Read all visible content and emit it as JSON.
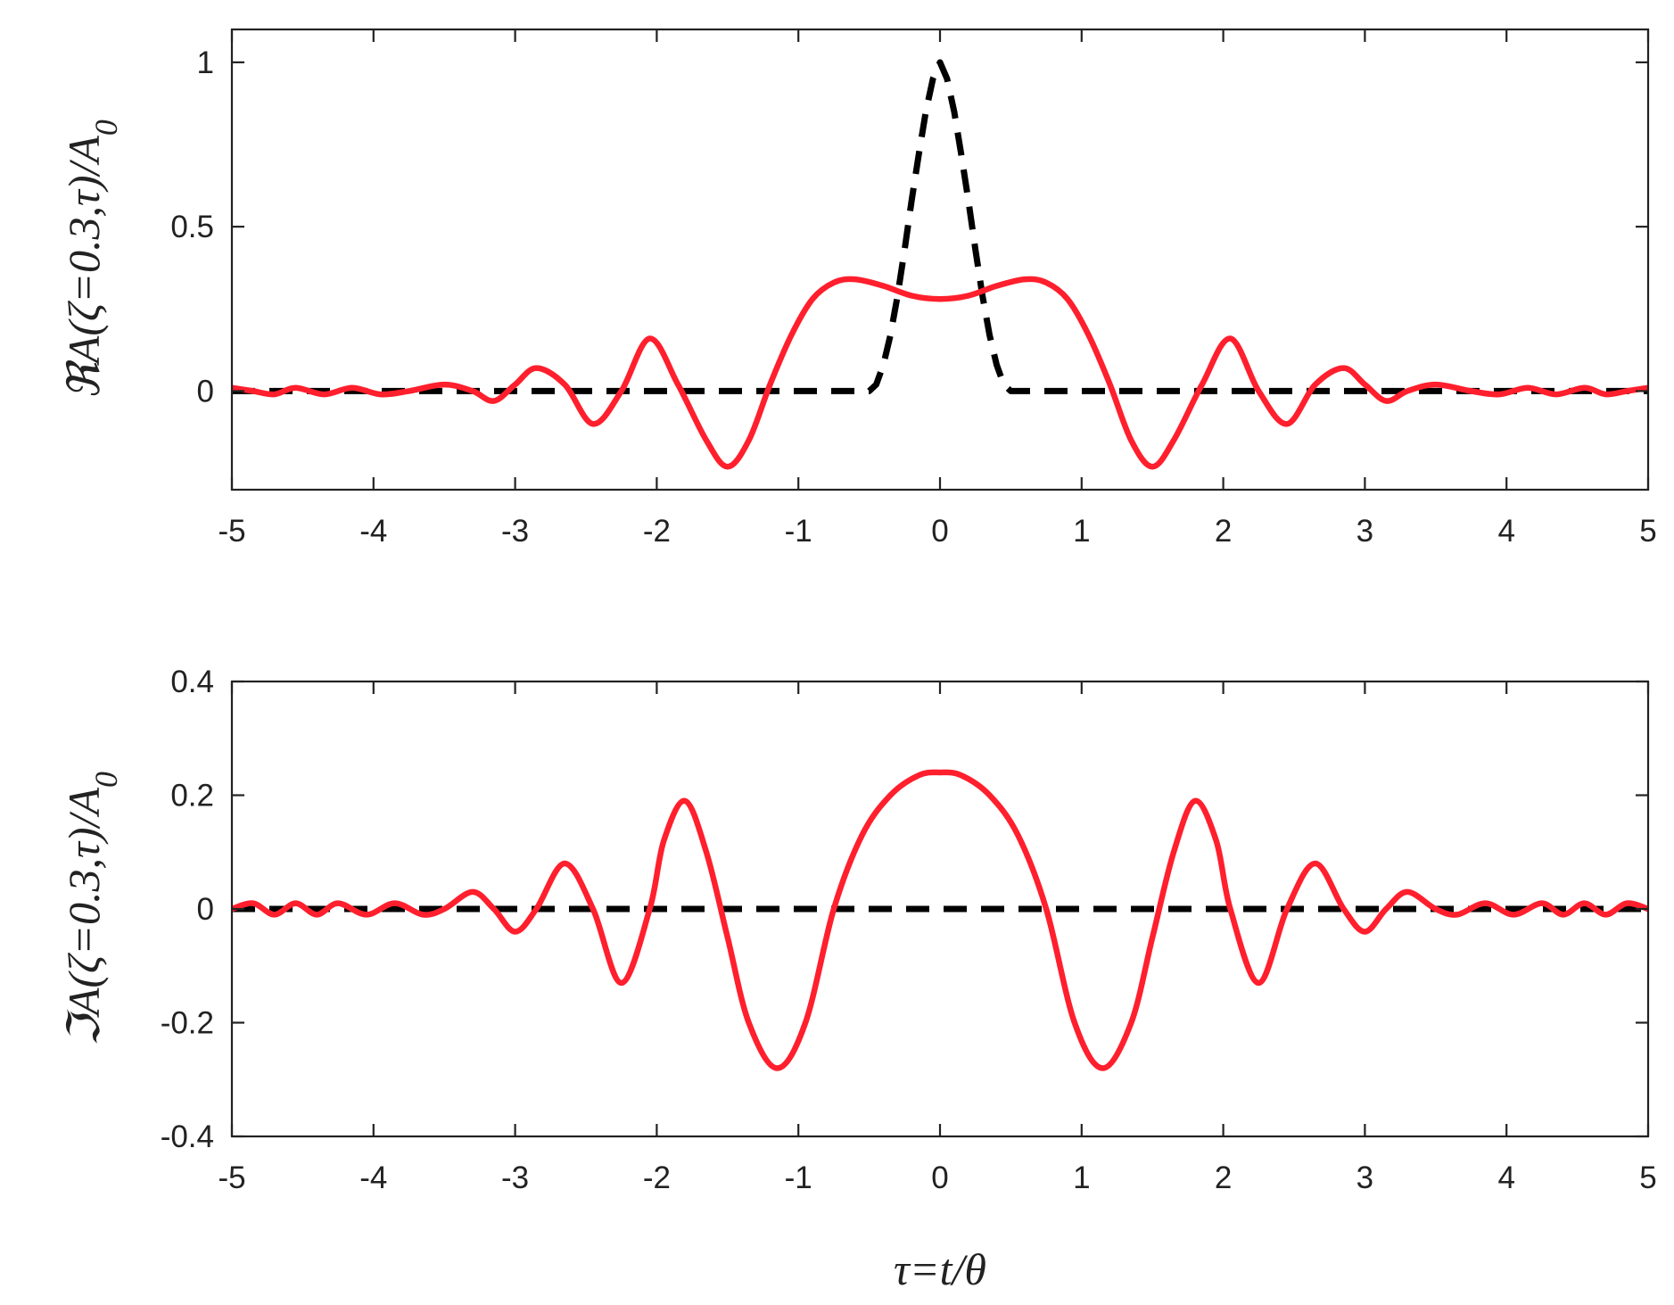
{
  "chart_data": [
    {
      "type": "line",
      "title": "",
      "xlabel": "",
      "ylabel": "ℜA(ζ=0.3,τ)/A0",
      "xlim": [
        -5,
        5
      ],
      "ylim": [
        -0.3,
        1.1
      ],
      "xticks": [
        "-5",
        "-4",
        "-3",
        "-2",
        "-1",
        "0",
        "1",
        "2",
        "3",
        "4",
        "5"
      ],
      "yticks": [
        "0",
        "0.5",
        "1"
      ],
      "grid": false,
      "legend": "none",
      "series": [
        {
          "style": "dashed",
          "color": "#000000",
          "x": [
            -5,
            -0.5,
            -0.45,
            -0.4,
            -0.35,
            -0.3,
            -0.25,
            -0.2,
            -0.15,
            -0.1,
            -0.05,
            0,
            0.05,
            0.1,
            0.15,
            0.2,
            0.25,
            0.3,
            0.35,
            0.4,
            0.45,
            0.5,
            5
          ],
          "y": [
            0,
            0,
            0.02,
            0.08,
            0.17,
            0.29,
            0.43,
            0.58,
            0.72,
            0.85,
            0.95,
            1.0,
            0.95,
            0.85,
            0.72,
            0.58,
            0.43,
            0.29,
            0.17,
            0.08,
            0.02,
            0,
            0
          ]
        },
        {
          "style": "solid",
          "color": "#ff1f2d",
          "x": [
            -5,
            -4.85,
            -4.7,
            -4.55,
            -4.35,
            -4.15,
            -3.95,
            -3.75,
            -3.5,
            -3.3,
            -3.15,
            -3.0,
            -2.85,
            -2.65,
            -2.45,
            -2.25,
            -2.05,
            -1.85,
            -1.65,
            -1.5,
            -1.35,
            -1.2,
            -1.05,
            -0.9,
            -0.75,
            -0.6,
            -0.4,
            -0.2,
            0,
            0.2,
            0.4,
            0.6,
            0.75,
            0.9,
            1.05,
            1.2,
            1.35,
            1.5,
            1.65,
            1.85,
            2.05,
            2.25,
            2.45,
            2.65,
            2.85,
            3.0,
            3.15,
            3.3,
            3.5,
            3.75,
            3.95,
            4.15,
            4.35,
            4.55,
            4.7,
            4.85,
            5
          ],
          "y": [
            0.01,
            0.0,
            -0.01,
            0.01,
            -0.01,
            0.01,
            -0.01,
            0.0,
            0.02,
            0.0,
            -0.03,
            0.02,
            0.07,
            0.02,
            -0.1,
            0.0,
            0.16,
            0.02,
            -0.15,
            -0.23,
            -0.15,
            0.02,
            0.17,
            0.28,
            0.33,
            0.34,
            0.32,
            0.29,
            0.28,
            0.29,
            0.32,
            0.34,
            0.33,
            0.28,
            0.17,
            0.02,
            -0.15,
            -0.23,
            -0.15,
            0.02,
            0.16,
            0.0,
            -0.1,
            0.02,
            0.07,
            0.02,
            -0.03,
            0.0,
            0.02,
            0.0,
            -0.01,
            0.01,
            -0.01,
            0.01,
            -0.01,
            0.0,
            0.01
          ]
        }
      ]
    },
    {
      "type": "line",
      "title": "",
      "xlabel": "τ=t/θ",
      "ylabel": "ℑA(ζ=0.3,τ)/A0",
      "xlim": [
        -5,
        5
      ],
      "ylim": [
        -0.4,
        0.4
      ],
      "xticks": [
        "-5",
        "-4",
        "-3",
        "-2",
        "-1",
        "0",
        "1",
        "2",
        "3",
        "4",
        "5"
      ],
      "yticks": [
        "-0.4",
        "-0.2",
        "0",
        "0.2",
        "0.4"
      ],
      "grid": false,
      "legend": "none",
      "series": [
        {
          "style": "dashed",
          "color": "#000000",
          "x": [
            -5,
            5
          ],
          "y": [
            0,
            0
          ]
        },
        {
          "style": "solid",
          "color": "#ff1f2d",
          "x": [
            -5,
            -4.85,
            -4.7,
            -4.55,
            -4.4,
            -4.25,
            -4.05,
            -3.85,
            -3.65,
            -3.5,
            -3.3,
            -3.15,
            -3.0,
            -2.85,
            -2.65,
            -2.45,
            -2.25,
            -2.05,
            -1.95,
            -1.8,
            -1.65,
            -1.5,
            -1.35,
            -1.15,
            -0.95,
            -0.75,
            -0.55,
            -0.35,
            -0.15,
            0,
            0.15,
            0.35,
            0.55,
            0.75,
            0.95,
            1.15,
            1.35,
            1.5,
            1.65,
            1.8,
            1.95,
            2.05,
            2.25,
            2.45,
            2.65,
            2.85,
            3.0,
            3.15,
            3.3,
            3.5,
            3.65,
            3.85,
            4.05,
            4.25,
            4.4,
            4.55,
            4.7,
            4.85,
            5
          ],
          "y": [
            0.0,
            0.01,
            -0.01,
            0.01,
            -0.01,
            0.01,
            -0.01,
            0.01,
            -0.01,
            0.0,
            0.03,
            0.0,
            -0.04,
            0.0,
            0.08,
            0.0,
            -0.13,
            0.0,
            0.12,
            0.19,
            0.1,
            -0.05,
            -0.2,
            -0.28,
            -0.2,
            0.0,
            0.13,
            0.2,
            0.235,
            0.24,
            0.235,
            0.2,
            0.13,
            0.0,
            -0.2,
            -0.28,
            -0.2,
            -0.05,
            0.1,
            0.19,
            0.12,
            0.0,
            -0.13,
            0.0,
            0.08,
            0.0,
            -0.04,
            0.0,
            0.03,
            0.0,
            -0.01,
            0.01,
            -0.01,
            0.01,
            -0.01,
            0.01,
            -0.01,
            0.01,
            0.0
          ]
        }
      ]
    }
  ]
}
